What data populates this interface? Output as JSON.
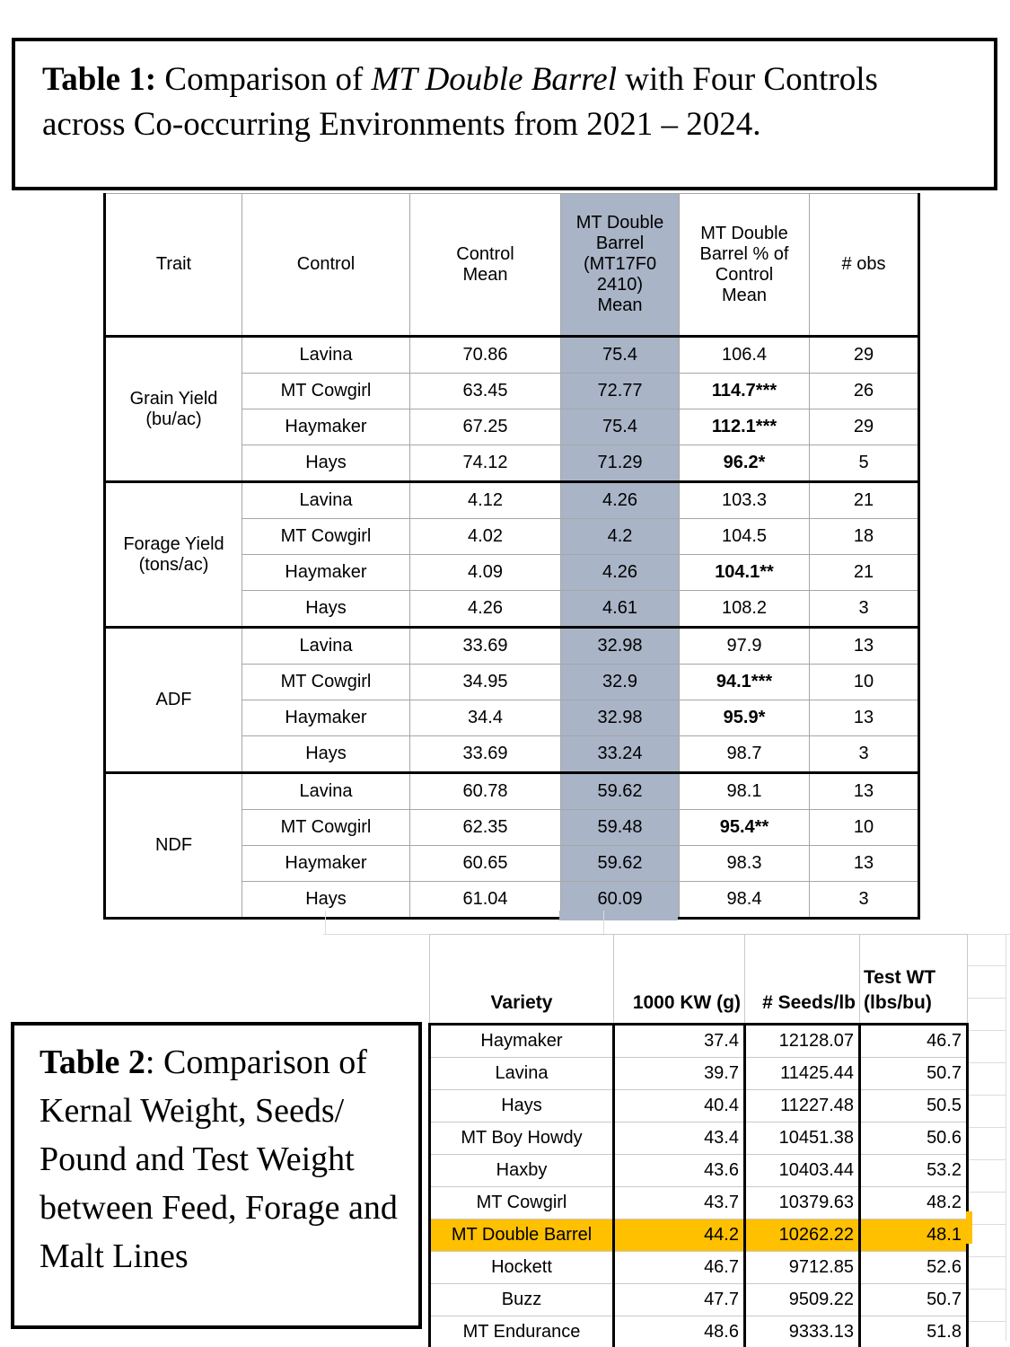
{
  "colors": {
    "barrel_column_highlight": "#a9b4c7",
    "double_barrel_row_highlight": "#ffc000",
    "table_border": "#000000",
    "grid_gray": "#a6a6a6"
  },
  "table1": {
    "caption": {
      "label": "Table 1:",
      "pre_italic": " Comparison of ",
      "italic": "MT Double Barrel",
      "post_italic": " with Four Controls across Co-occurring Environments from 2021 – 2024."
    },
    "headers": [
      "Trait",
      "Control",
      "Control\nMean",
      "MT Double\nBarrel\n(MT17F0\n2410)\nMean",
      "MT Double\nBarrel  % of\nControl\nMean",
      "# obs"
    ],
    "groups": [
      {
        "trait": "Grain Yield\n(bu/ac)",
        "rows": [
          {
            "control": "Lavina",
            "control_mean": "70.86",
            "barrel_mean": "75.4",
            "pct": "106.4",
            "pct_bold": false,
            "obs": "29"
          },
          {
            "control": "MT Cowgirl",
            "control_mean": "63.45",
            "barrel_mean": "72.77",
            "pct": "114.7***",
            "pct_bold": true,
            "obs": "26"
          },
          {
            "control": "Haymaker",
            "control_mean": "67.25",
            "barrel_mean": "75.4",
            "pct": "112.1***",
            "pct_bold": true,
            "obs": "29"
          },
          {
            "control": "Hays",
            "control_mean": "74.12",
            "barrel_mean": "71.29",
            "pct": "96.2*",
            "pct_bold": true,
            "obs": "5"
          }
        ]
      },
      {
        "trait": "Forage Yield\n(tons/ac)",
        "rows": [
          {
            "control": "Lavina",
            "control_mean": "4.12",
            "barrel_mean": "4.26",
            "pct": "103.3",
            "pct_bold": false,
            "obs": "21"
          },
          {
            "control": "MT Cowgirl",
            "control_mean": "4.02",
            "barrel_mean": "4.2",
            "pct": "104.5",
            "pct_bold": false,
            "obs": "18"
          },
          {
            "control": "Haymaker",
            "control_mean": "4.09",
            "barrel_mean": "4.26",
            "pct": "104.1**",
            "pct_bold": true,
            "obs": "21"
          },
          {
            "control": "Hays",
            "control_mean": "4.26",
            "barrel_mean": "4.61",
            "pct": "108.2",
            "pct_bold": false,
            "obs": "3"
          }
        ]
      },
      {
        "trait": "ADF",
        "rows": [
          {
            "control": "Lavina",
            "control_mean": "33.69",
            "barrel_mean": "32.98",
            "pct": "97.9",
            "pct_bold": false,
            "obs": "13"
          },
          {
            "control": "MT Cowgirl",
            "control_mean": "34.95",
            "barrel_mean": "32.9",
            "pct": "94.1***",
            "pct_bold": true,
            "obs": "10"
          },
          {
            "control": "Haymaker",
            "control_mean": "34.4",
            "barrel_mean": "32.98",
            "pct": "95.9*",
            "pct_bold": true,
            "obs": "13"
          },
          {
            "control": "Hays",
            "control_mean": "33.69",
            "barrel_mean": "33.24",
            "pct": "98.7",
            "pct_bold": false,
            "obs": "3"
          }
        ]
      },
      {
        "trait": "NDF",
        "rows": [
          {
            "control": "Lavina",
            "control_mean": "60.78",
            "barrel_mean": "59.62",
            "pct": "98.1",
            "pct_bold": false,
            "obs": "13"
          },
          {
            "control": "MT Cowgirl",
            "control_mean": "62.35",
            "barrel_mean": "59.48",
            "pct": "95.4**",
            "pct_bold": true,
            "obs": "10"
          },
          {
            "control": "Haymaker",
            "control_mean": "60.65",
            "barrel_mean": "59.62",
            "pct": "98.3",
            "pct_bold": false,
            "obs": "13"
          },
          {
            "control": "Hays",
            "control_mean": "61.04",
            "barrel_mean": "60.09",
            "pct": "98.4",
            "pct_bold": false,
            "obs": "3"
          }
        ]
      }
    ]
  },
  "table2": {
    "caption": {
      "label": "Table 2",
      "text": ": Comparison of Kernal Weight, Seeds/ Pound and Test Weight between Feed, Forage and Malt Lines"
    },
    "headers": [
      "Variety",
      "1000 KW (g)",
      "# Seeds/lb",
      "Test WT\n(lbs/bu)"
    ],
    "rows": [
      {
        "variety": "Haymaker",
        "kw": "37.4",
        "seeds": "12128.07",
        "test_wt": "46.7",
        "highlight": false
      },
      {
        "variety": "Lavina",
        "kw": "39.7",
        "seeds": "11425.44",
        "test_wt": "50.7",
        "highlight": false
      },
      {
        "variety": "Hays",
        "kw": "40.4",
        "seeds": "11227.48",
        "test_wt": "50.5",
        "highlight": false
      },
      {
        "variety": "MT Boy Howdy",
        "kw": "43.4",
        "seeds": "10451.38",
        "test_wt": "50.6",
        "highlight": false
      },
      {
        "variety": "Haxby",
        "kw": "43.6",
        "seeds": "10403.44",
        "test_wt": "53.2",
        "highlight": false
      },
      {
        "variety": "MT Cowgirl",
        "kw": "43.7",
        "seeds": "10379.63",
        "test_wt": "48.2",
        "highlight": false
      },
      {
        "variety": "MT Double Barrel",
        "kw": "44.2",
        "seeds": "10262.22",
        "test_wt": "48.1",
        "highlight": true
      },
      {
        "variety": "Hockett",
        "kw": "46.7",
        "seeds": "9712.85",
        "test_wt": "52.6",
        "highlight": false
      },
      {
        "variety": "Buzz",
        "kw": "47.7",
        "seeds": "9509.22",
        "test_wt": "50.7",
        "highlight": false
      },
      {
        "variety": "MT Endurance",
        "kw": "48.6",
        "seeds": "9333.13",
        "test_wt": "51.8",
        "highlight": false
      }
    ]
  }
}
